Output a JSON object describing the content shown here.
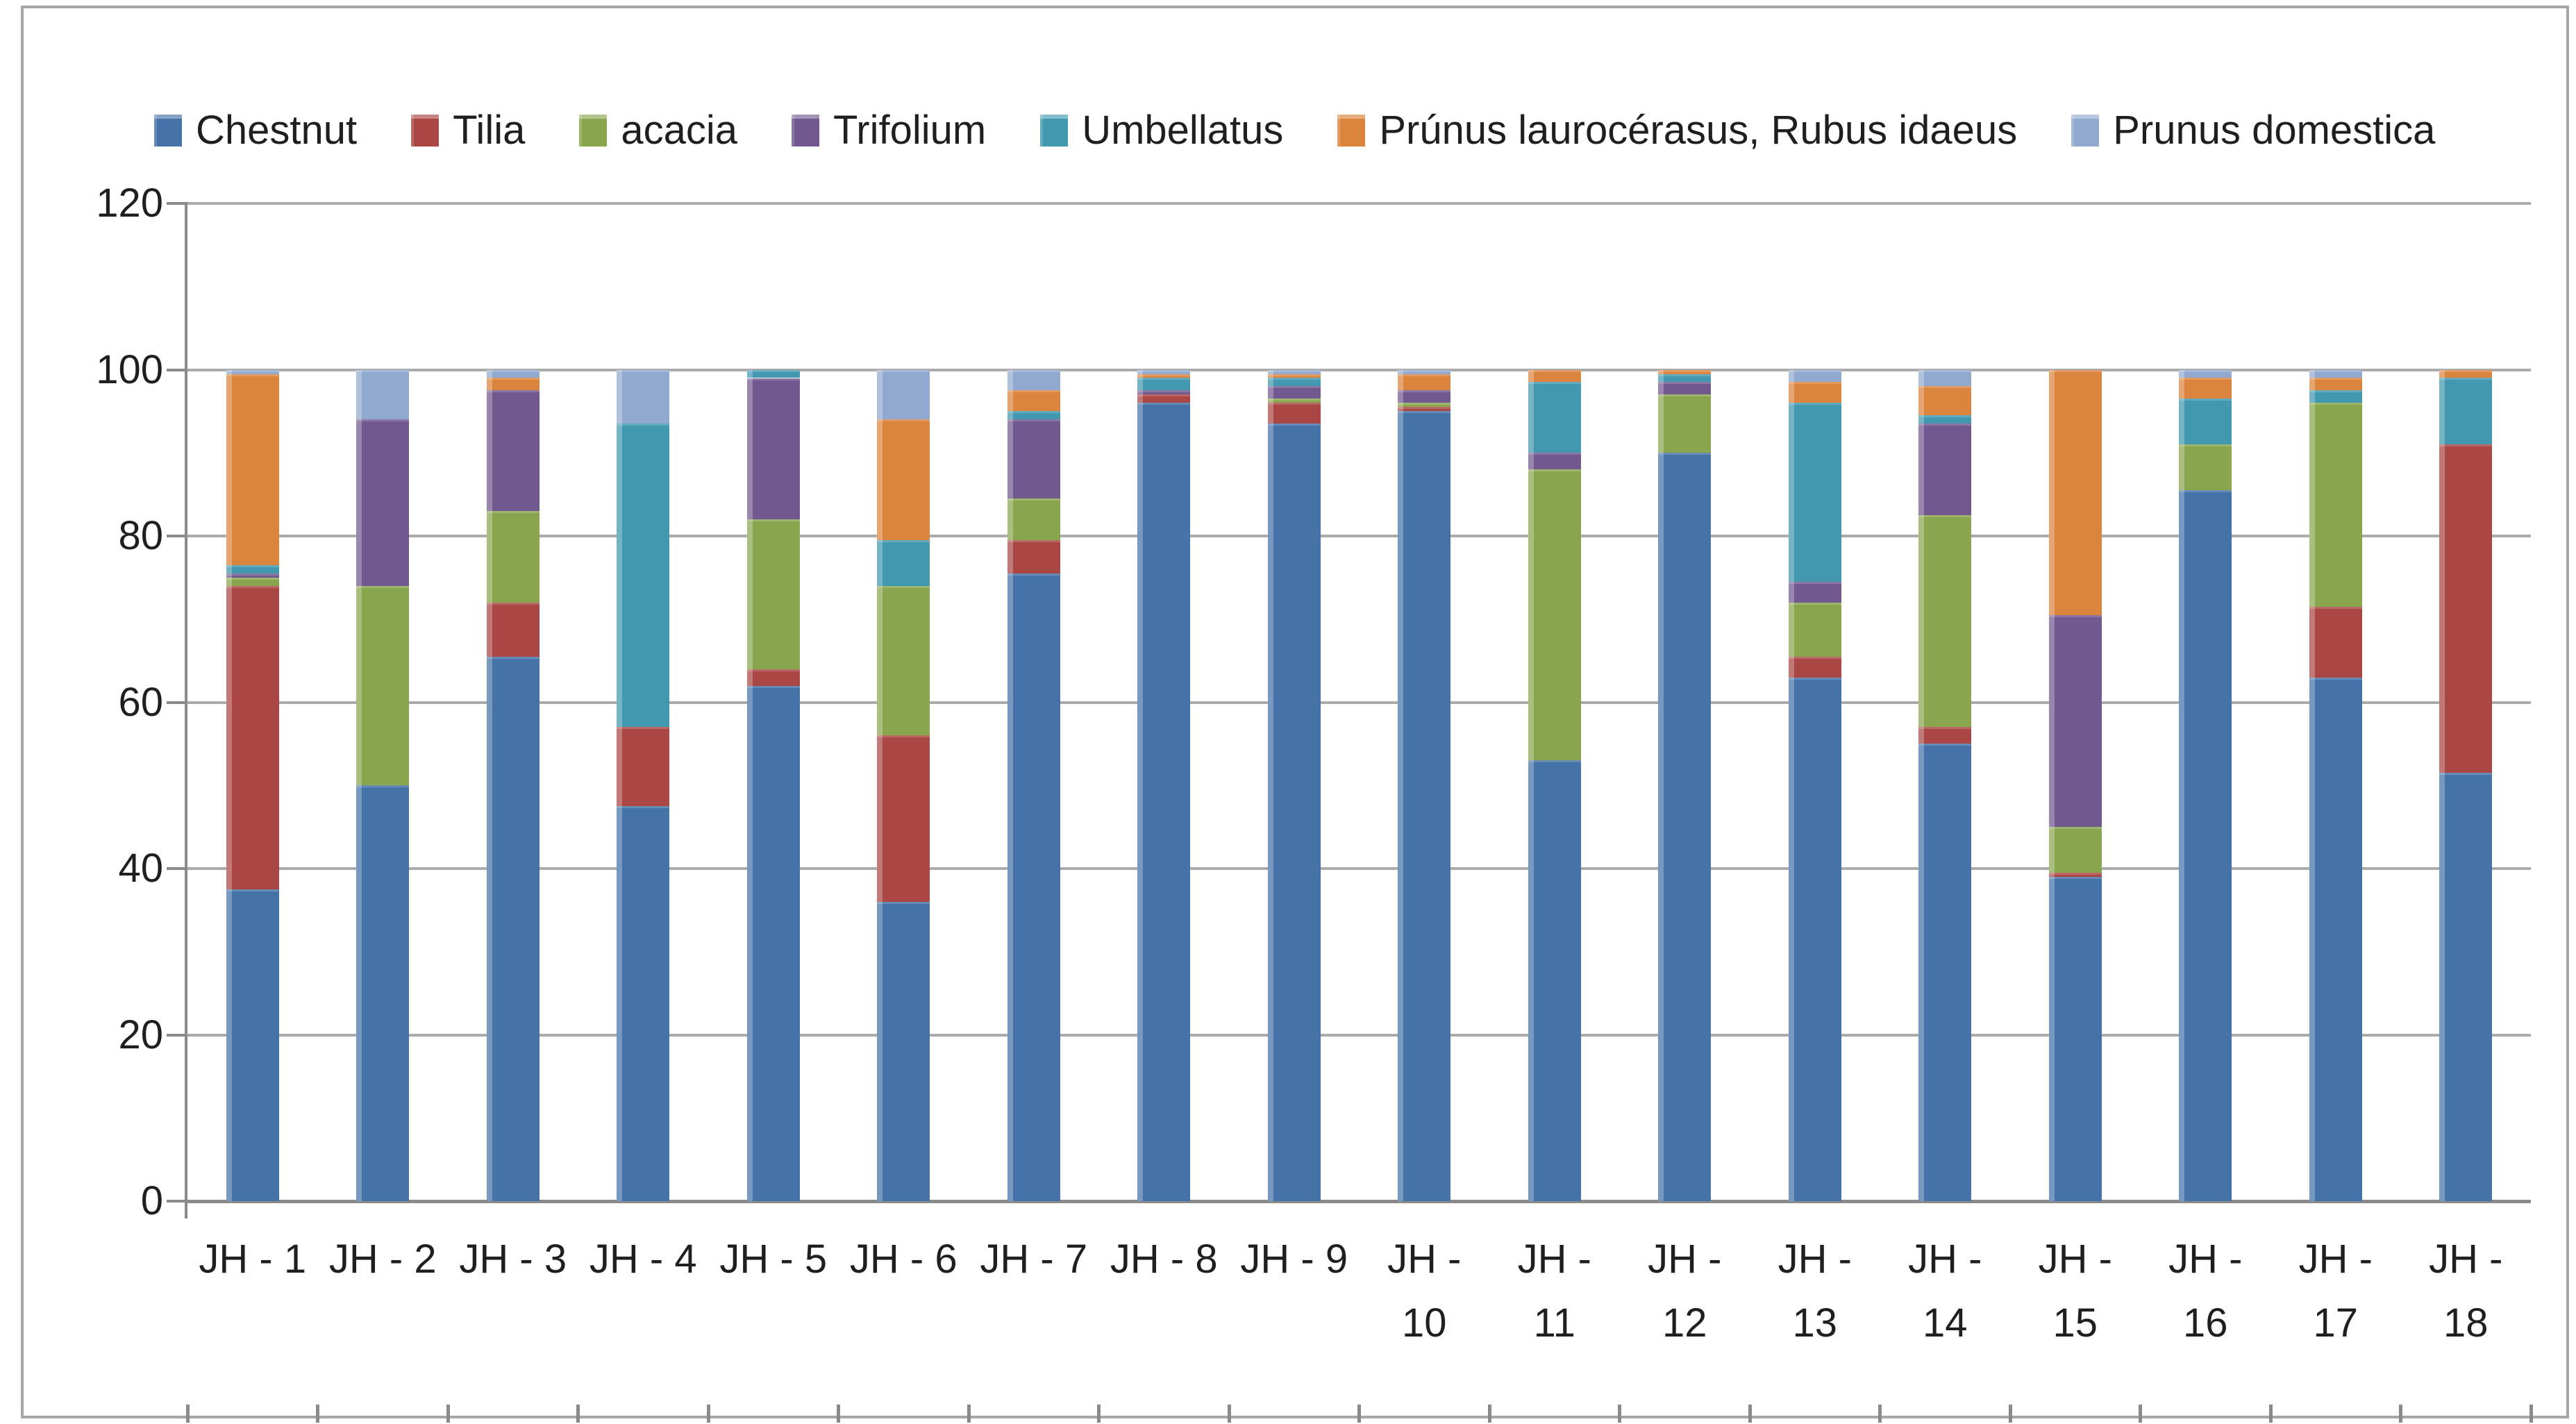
{
  "chart_data": {
    "type": "bar",
    "stacked": true,
    "stack_total": 100,
    "orientation": "vertical",
    "title": "",
    "xlabel": "",
    "ylabel": "",
    "ylim": [
      0,
      120
    ],
    "yticks": [
      0,
      20,
      40,
      60,
      80,
      100,
      120
    ],
    "grid": true,
    "legend_position": "top",
    "categories": [
      "JH - 1",
      "JH - 2",
      "JH - 3",
      "JH - 4",
      "JH - 5",
      "JH - 6",
      "JH - 7",
      "JH - 8",
      "JH - 9",
      "JH - 10",
      "JH - 11",
      "JH - 12",
      "JH - 13",
      "JH - 14",
      "JH - 15",
      "JH - 16",
      "JH - 17",
      "JH - 18"
    ],
    "series": [
      {
        "name": "Chestnut",
        "color": "#4572A7",
        "values": [
          37.5,
          50,
          65.5,
          47.5,
          62,
          36,
          75.5,
          96,
          93.5,
          95,
          53,
          90,
          63,
          55,
          39,
          85.5,
          63,
          51.5
        ]
      },
      {
        "name": "Tilia",
        "color": "#AA4643",
        "values": [
          36.5,
          0,
          6.5,
          9.5,
          2,
          20,
          4,
          1,
          2.5,
          0.5,
          0,
          0,
          2.5,
          2,
          0.5,
          0,
          8.5,
          39.5
        ]
      },
      {
        "name": "acacia",
        "color": "#89A54E",
        "values": [
          1,
          24,
          11,
          0,
          18,
          18,
          5,
          0,
          0.5,
          0.5,
          35,
          7,
          6.5,
          25.5,
          5.5,
          5.5,
          24.5,
          0
        ]
      },
      {
        "name": "Trifolium",
        "color": "#71588F",
        "values": [
          0.5,
          20,
          14.5,
          0,
          17,
          0,
          9.5,
          0.5,
          1.5,
          1.5,
          2,
          1.5,
          2.5,
          11,
          25.5,
          0,
          0,
          0
        ]
      },
      {
        "name": "Umbellatus",
        "color": "#4198AF",
        "values": [
          1,
          0,
          0,
          36.5,
          1,
          5.5,
          1,
          1.5,
          1,
          0,
          8.5,
          1,
          21.5,
          1,
          0,
          5.5,
          1.5,
          8
        ]
      },
      {
        "name": "Prúnus laurocérasus, Rubus idaeus",
        "color": "#DB843D",
        "values": [
          23,
          0,
          1.5,
          0,
          0,
          14.5,
          2.5,
          0.5,
          0.5,
          2,
          1.5,
          0.5,
          2.5,
          3.5,
          29.5,
          2.5,
          1.5,
          1
        ]
      },
      {
        "name": "Prunus domestica",
        "color": "#92A9CF",
        "values": [
          0.5,
          6,
          1,
          6.5,
          0,
          6,
          2.5,
          0.5,
          0.5,
          0.5,
          0,
          0,
          1.5,
          2,
          0,
          1,
          1,
          0
        ]
      }
    ]
  },
  "axis": {
    "ytick_labels": [
      "0",
      "20",
      "40",
      "60",
      "80",
      "100",
      "120"
    ]
  }
}
